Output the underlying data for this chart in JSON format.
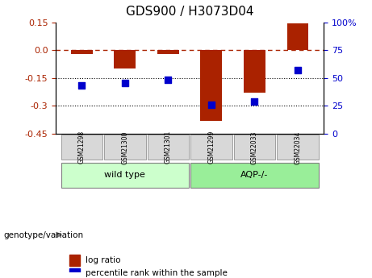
{
  "title": "GDS900 / H3073D04",
  "categories": [
    "GSM21298",
    "GSM21300",
    "GSM21301",
    "GSM21299",
    "GSM22033",
    "GSM22034"
  ],
  "log_ratio": [
    -0.02,
    -0.1,
    -0.02,
    -0.38,
    -0.23,
    0.145
  ],
  "percentile_rank": [
    43,
    45,
    48,
    26,
    29,
    57
  ],
  "bar_color": "#aa2200",
  "dot_color": "#0000cc",
  "left_ylim": [
    -0.45,
    0.15
  ],
  "right_ylim": [
    0,
    100
  ],
  "left_yticks": [
    0.15,
    0.0,
    -0.15,
    -0.3,
    -0.45
  ],
  "right_yticks": [
    100,
    75,
    50,
    25,
    0
  ],
  "hline_y": 0.0,
  "dotted_lines": [
    -0.15,
    -0.3
  ],
  "group1_label": "wild type",
  "group2_label": "AQP-/-",
  "group1_indices": [
    0,
    1,
    2
  ],
  "group2_indices": [
    3,
    4,
    5
  ],
  "group1_color": "#ccffcc",
  "group2_color": "#99ee99",
  "xlabel_rotation": 90,
  "legend_log_ratio": "log ratio",
  "legend_percentile": "percentile rank within the sample",
  "genotype_label": "genotype/variation",
  "bar_width": 0.5,
  "background_color": "#ffffff",
  "plot_bg_color": "#ffffff"
}
